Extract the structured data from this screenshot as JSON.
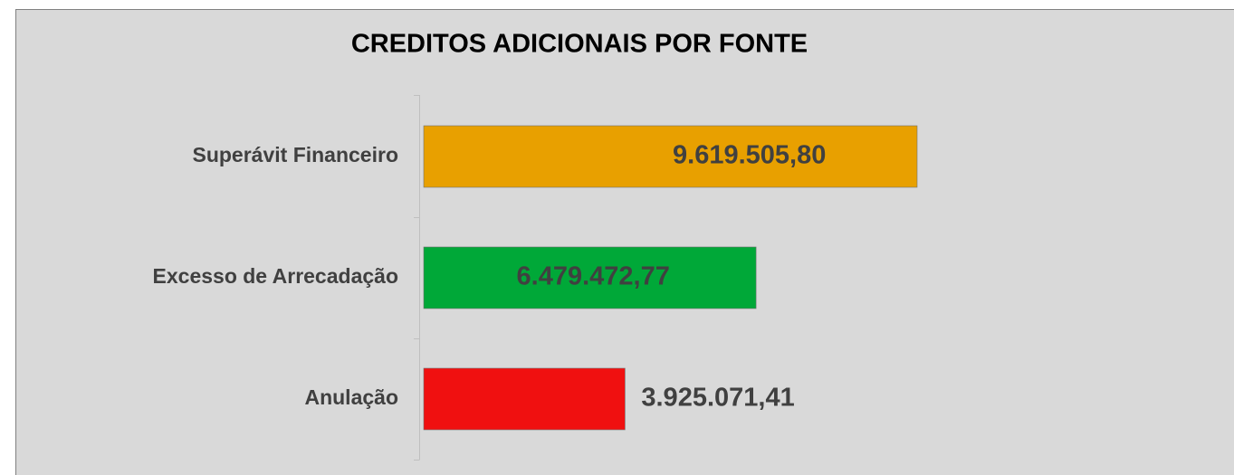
{
  "chart_data": {
    "type": "bar",
    "orientation": "horizontal",
    "title": "CREDITOS ADICIONAIS POR FONTE",
    "categories": [
      "Superávit Financeiro",
      "Excesso de Arrecadação",
      "Anulação"
    ],
    "values": [
      9619505.8,
      6479472.77,
      3925071.41
    ],
    "value_labels": [
      "9.619.505,80",
      "6.479.472,77",
      "3.925.071,41"
    ],
    "colors": [
      "#e8a000",
      "#00a838",
      "#f01010"
    ]
  }
}
